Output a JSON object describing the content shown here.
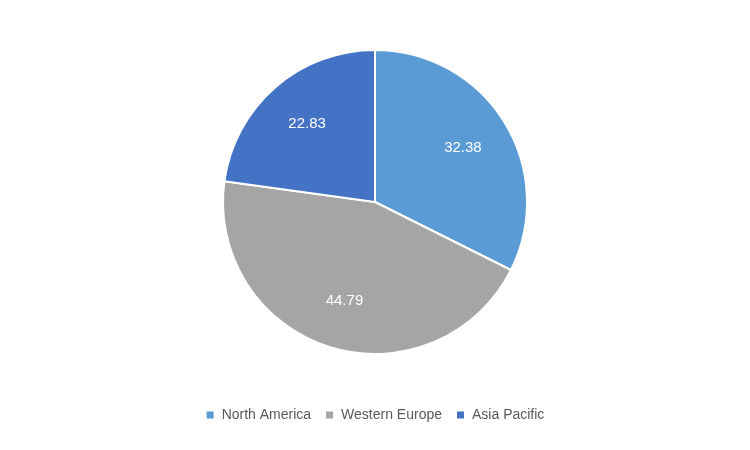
{
  "chart_data": {
    "type": "pie",
    "categories": [
      "North America",
      "Western Europe",
      "Asia Pacific"
    ],
    "values": [
      32.38,
      44.79,
      22.83
    ],
    "colors": [
      "#5b9bd5",
      "#a5a5a5",
      "#4472c4"
    ],
    "data_labels": true,
    "legend": "bottom"
  }
}
